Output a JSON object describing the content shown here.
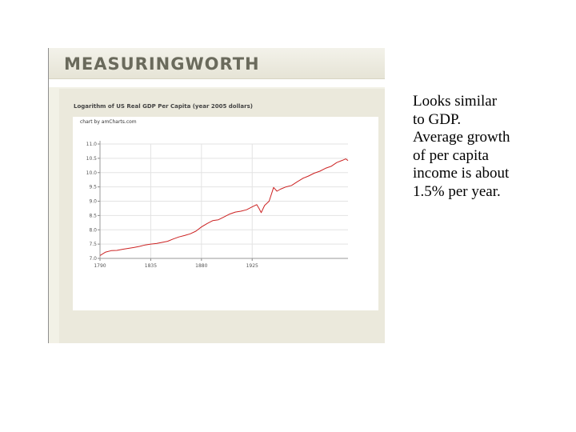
{
  "brand": {
    "logo_text": "MEASURINGWORTH"
  },
  "chart_data": {
    "type": "line",
    "title": "Logarithm of US Real GDP Per Capita (year 2005 dollars)",
    "credit": "chart by amCharts.com",
    "xlabel": "",
    "ylabel": "",
    "xlim": [
      1790,
      2010
    ],
    "ylim": [
      7.0,
      11.0
    ],
    "x_ticks": [
      1790,
      1835,
      1880,
      1925
    ],
    "x_tick_labels": [
      "1790",
      "1835",
      "1880",
      "1925"
    ],
    "y_ticks": [
      7.0,
      7.5,
      8.0,
      8.5,
      9.0,
      9.5,
      10.0,
      10.5,
      11.0
    ],
    "y_tick_labels": [
      "7.0",
      "7.5",
      "8.0",
      "8.5",
      "9.0",
      "9.5",
      "10.0",
      "10.5",
      "11.0"
    ],
    "grid": true,
    "legend": "none",
    "series": [
      {
        "color": "#cc2222",
        "x": [
          1790,
          1795,
          1800,
          1805,
          1810,
          1815,
          1820,
          1825,
          1830,
          1835,
          1840,
          1845,
          1850,
          1855,
          1860,
          1865,
          1870,
          1875,
          1880,
          1885,
          1890,
          1895,
          1900,
          1905,
          1910,
          1915,
          1920,
          1925,
          1929,
          1931,
          1933,
          1936,
          1940,
          1944,
          1947,
          1950,
          1955,
          1960,
          1965,
          1970,
          1975,
          1980,
          1985,
          1990,
          1995,
          2000,
          2005,
          2008,
          2010
        ],
        "y": [
          7.1,
          7.22,
          7.27,
          7.28,
          7.32,
          7.35,
          7.38,
          7.42,
          7.47,
          7.5,
          7.52,
          7.56,
          7.6,
          7.68,
          7.75,
          7.8,
          7.86,
          7.95,
          8.1,
          8.22,
          8.32,
          8.35,
          8.45,
          8.55,
          8.62,
          8.65,
          8.7,
          8.8,
          8.88,
          8.75,
          8.6,
          8.85,
          9.0,
          9.48,
          9.35,
          9.42,
          9.5,
          9.55,
          9.68,
          9.8,
          9.88,
          9.98,
          10.05,
          10.15,
          10.22,
          10.35,
          10.43,
          10.48,
          10.42
        ]
      }
    ]
  },
  "caption": "Looks similar\nto GDP.\nAverage growth\nof per capita\nincome is about\n1.5% per year."
}
